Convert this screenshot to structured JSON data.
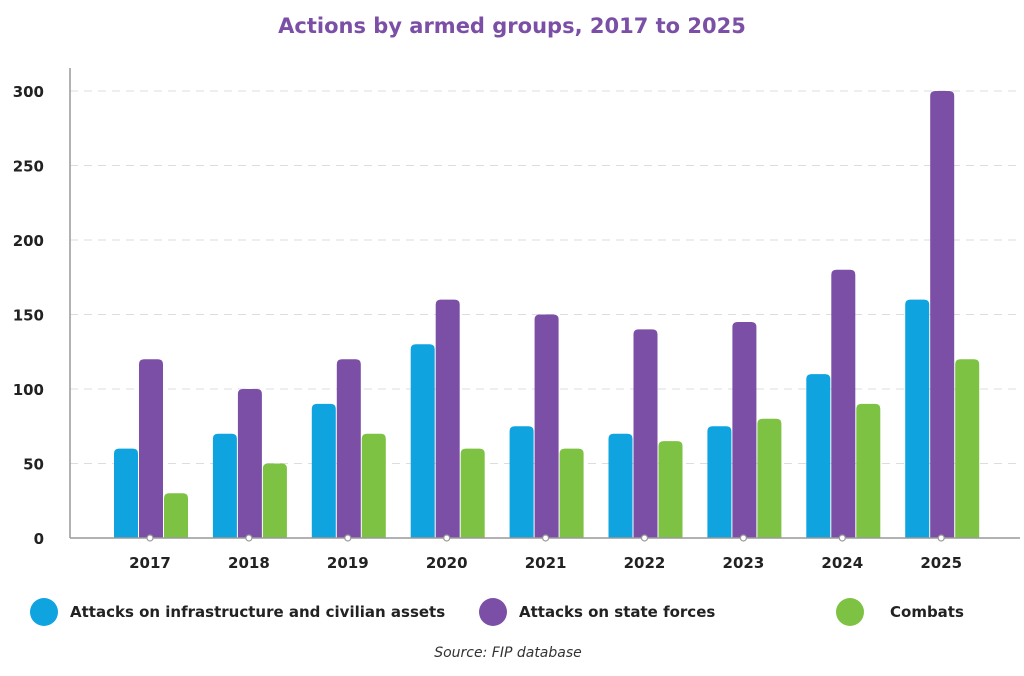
{
  "chart_data": {
    "type": "bar",
    "title": "Actions by armed groups, 2017 to 2025",
    "categories": [
      "2017",
      "2018",
      "2019",
      "2020",
      "2021",
      "2022",
      "2023",
      "2024",
      "2025"
    ],
    "series": [
      {
        "name": "Attacks on infrastructure and civilian assets",
        "color": "#0fa3e0",
        "values": [
          60,
          70,
          90,
          130,
          75,
          70,
          75,
          110,
          160
        ]
      },
      {
        "name": "Attacks on state forces",
        "color": "#7b4fa6",
        "values": [
          120,
          100,
          120,
          160,
          150,
          140,
          145,
          180,
          300
        ]
      },
      {
        "name": "Combats",
        "color": "#7dc242",
        "values": [
          30,
          50,
          70,
          60,
          60,
          65,
          80,
          90,
          120
        ]
      }
    ],
    "ylim": [
      0,
      300
    ],
    "yticks": [
      "0",
      "50",
      "100",
      "150",
      "200",
      "250",
      "300"
    ],
    "grid": true,
    "legend_placement": "bottom",
    "source": "Source: FIP database"
  }
}
